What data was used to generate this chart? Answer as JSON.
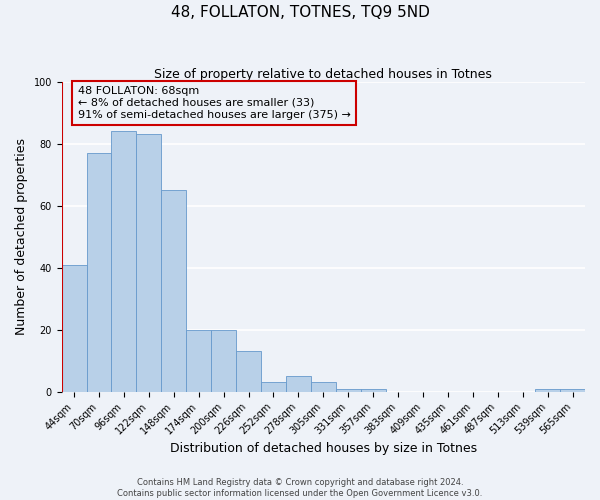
{
  "title": "48, FOLLATON, TOTNES, TQ9 5ND",
  "subtitle": "Size of property relative to detached houses in Totnes",
  "xlabel": "Distribution of detached houses by size in Totnes",
  "ylabel": "Number of detached properties",
  "bar_labels": [
    "44sqm",
    "70sqm",
    "96sqm",
    "122sqm",
    "148sqm",
    "174sqm",
    "200sqm",
    "226sqm",
    "252sqm",
    "278sqm",
    "305sqm",
    "331sqm",
    "357sqm",
    "383sqm",
    "409sqm",
    "435sqm",
    "461sqm",
    "487sqm",
    "513sqm",
    "539sqm",
    "565sqm"
  ],
  "bar_heights": [
    41,
    77,
    84,
    83,
    65,
    20,
    20,
    13,
    3,
    5,
    3,
    1,
    1,
    0,
    0,
    0,
    0,
    0,
    0,
    1,
    1
  ],
  "bar_color": "#b8d0e8",
  "bar_edge_color": "#6699cc",
  "vline_color": "#cc0000",
  "box_edge_color": "#cc0000",
  "ylim": [
    0,
    100
  ],
  "bg_color": "#eef2f8",
  "grid_color": "#ffffff",
  "annotation_line1": "48 FOLLATON: 68sqm",
  "annotation_line2": "← 8% of detached houses are smaller (33)",
  "annotation_line3": "91% of semi-detached houses are larger (375) →",
  "footer_line1": "Contains HM Land Registry data © Crown copyright and database right 2024.",
  "footer_line2": "Contains public sector information licensed under the Open Government Licence v3.0.",
  "title_fontsize": 11,
  "subtitle_fontsize": 9,
  "axis_label_fontsize": 9,
  "tick_fontsize": 7,
  "annotation_fontsize": 8
}
